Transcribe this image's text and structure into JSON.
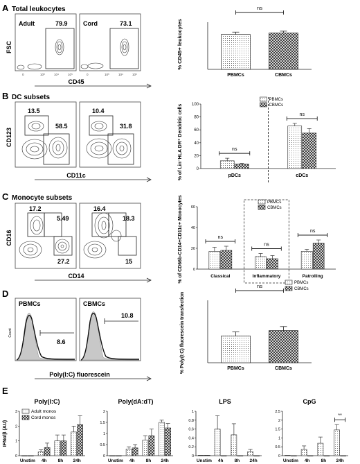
{
  "panels": {
    "A": {
      "letter": "A",
      "title": "Total leukocytes",
      "flow": {
        "y_label": "FSC",
        "x_label": "CD45",
        "plots": [
          {
            "label": "Adult",
            "pct": "79.9"
          },
          {
            "label": "Cord",
            "pct": "73.1"
          }
        ],
        "ticks": [
          "0",
          "10³",
          "10⁴",
          "10⁵"
        ]
      }
    },
    "B": {
      "letter": "B",
      "title": "DC subsets",
      "flow": {
        "y_label": "CD123",
        "x_label": "CD11c",
        "plots": [
          {
            "gates": [
              "13.5",
              "58.5"
            ]
          },
          {
            "gates": [
              "10.4",
              "31.8"
            ]
          }
        ]
      }
    },
    "C": {
      "letter": "C",
      "title": "Monocyte subsets",
      "flow": {
        "y_label": "CD16",
        "x_label": "CD14",
        "plots": [
          {
            "gates": [
              "17.2",
              "5.49",
              "27.2"
            ]
          },
          {
            "gates": [
              "16.4",
              "18.3",
              "15"
            ]
          }
        ]
      }
    },
    "D": {
      "letter": "D",
      "flow": {
        "y_label": "Count",
        "x_label": "Poly(I:C) fluorescein",
        "plots": [
          {
            "label": "PBMCs",
            "pct": "8.6"
          },
          {
            "label": "CBMCs",
            "pct": "10.8"
          }
        ]
      }
    },
    "E": {
      "letter": "E"
    }
  },
  "chart_data": [
    {
      "id": "A",
      "type": "bar",
      "title": "",
      "ylabel": "% CD45+ leukocytes",
      "xlabel": "",
      "categories": [
        "PBMCs",
        "CBMCs"
      ],
      "values": [
        74,
        77
      ],
      "errors": [
        5,
        4
      ],
      "ylim": [
        0,
        100
      ],
      "patterns": [
        "dots",
        "cross"
      ],
      "significance": [
        {
          "label": "ns",
          "from": 0,
          "to": 1
        }
      ]
    },
    {
      "id": "B",
      "type": "bar",
      "title": "",
      "ylabel": "% of Lin⁻HLA DR⁺ Dendritic cells",
      "xlabel": "",
      "groups": [
        "pDCs",
        "cDCs"
      ],
      "ylim": [
        0,
        100
      ],
      "yticks": [
        0,
        20,
        40,
        60,
        80,
        100
      ],
      "series": [
        {
          "name": "PBMCs",
          "pattern": "dots",
          "values": [
            12,
            66
          ],
          "errors": [
            4,
            4
          ]
        },
        {
          "name": "CBMCs",
          "pattern": "cross",
          "values": [
            7,
            55
          ],
          "errors": [
            1,
            7
          ]
        }
      ],
      "significance": [
        {
          "label": "ns",
          "group": 0
        },
        {
          "label": "ns",
          "group": 1
        }
      ],
      "separators": [
        1
      ]
    },
    {
      "id": "C",
      "type": "bar",
      "title": "",
      "ylabel": "% of CD66b-CD14+CD11c+ Monocytes",
      "xlabel": "",
      "groups": [
        "Classical",
        "Inflammatory",
        "Patrolling"
      ],
      "ylim": [
        0,
        60
      ],
      "yticks": [
        0,
        20,
        40,
        60
      ],
      "series": [
        {
          "name": "PBMCs",
          "pattern": "dots",
          "values": [
            17,
            12,
            17
          ],
          "errors": [
            4,
            3,
            2
          ]
        },
        {
          "name": "CBMCs",
          "pattern": "cross",
          "values": [
            18,
            10,
            25
          ],
          "errors": [
            4,
            3,
            3
          ]
        }
      ],
      "significance": [
        {
          "label": "ns",
          "group": 0
        },
        {
          "label": "ns",
          "group": 1
        },
        {
          "label": "ns",
          "group": 2
        }
      ],
      "boxed_groups": [
        1
      ]
    },
    {
      "id": "D",
      "type": "bar",
      "title": "",
      "ylabel": "% Poly(I:C) fluorescein transfection",
      "xlabel": "",
      "categories": [
        "PBMCs",
        "CBMCs"
      ],
      "values": [
        8.6,
        10.3
      ],
      "errors": [
        1.3,
        1.3
      ],
      "ylim": [
        0,
        20
      ],
      "patterns": [
        "dots",
        "cross"
      ],
      "legend": [
        "PBMCs",
        "CBMCs"
      ],
      "significance": [
        {
          "label": "ns",
          "from": 0,
          "to": 1
        }
      ]
    },
    {
      "id": "E1",
      "type": "bar",
      "title": "Poly(I:C)",
      "ylabel": "IFNα/β (AU)",
      "categories": [
        "Unstim",
        "4h",
        "8h",
        "24h"
      ],
      "ylim": [
        0,
        3
      ],
      "yticks": [
        0,
        1,
        2,
        3
      ],
      "series": [
        {
          "name": "Adult monos",
          "pattern": "dots",
          "values": [
            0,
            0.25,
            1.0,
            1.6
          ],
          "errors": [
            0,
            0.15,
            0.4,
            0.4
          ]
        },
        {
          "name": "Cord monos",
          "pattern": "cross",
          "values": [
            0,
            0.55,
            1.0,
            2.1
          ],
          "errors": [
            0,
            0.3,
            0.4,
            0.6
          ]
        }
      ]
    },
    {
      "id": "E2",
      "type": "bar",
      "title": "Poly(dA:dT)",
      "ylabel": "",
      "categories": [
        "Unstim",
        "4h",
        "8h",
        "24h"
      ],
      "ylim": [
        0,
        2
      ],
      "yticks": [
        0.0,
        0.5,
        1.0,
        1.5,
        2.0
      ],
      "series": [
        {
          "name": "Adult monos",
          "pattern": "dots",
          "values": [
            0,
            0.3,
            0.7,
            1.5
          ],
          "errors": [
            0,
            0.1,
            0.2,
            0.1
          ]
        },
        {
          "name": "Cord monos",
          "pattern": "cross",
          "values": [
            0,
            0.35,
            0.9,
            1.25
          ],
          "errors": [
            0,
            0.15,
            0.3,
            0.2
          ]
        }
      ]
    },
    {
      "id": "E3",
      "type": "bar",
      "title": "LPS",
      "ylabel": "",
      "categories": [
        "Unstim",
        "4h",
        "8h",
        "24h"
      ],
      "ylim": [
        0,
        1
      ],
      "yticks": [
        0.0,
        0.2,
        0.4,
        0.6,
        0.8,
        1.0
      ],
      "series": [
        {
          "name": "Adult monos",
          "pattern": "dots",
          "values": [
            0.01,
            0.6,
            0.47,
            0.09
          ],
          "errors": [
            0,
            0.3,
            0.25,
            0.05
          ]
        },
        {
          "name": "Cord monos",
          "pattern": "cross",
          "values": [
            0.01,
            0.0,
            0.0,
            0.0
          ],
          "errors": [
            0,
            0,
            0,
            0
          ]
        }
      ]
    },
    {
      "id": "E4",
      "type": "bar",
      "title": "CpG",
      "ylabel": "",
      "categories": [
        "Unstim",
        "4h",
        "8h",
        "24h"
      ],
      "ylim": [
        0,
        2.5
      ],
      "yticks": [
        0.0,
        0.5,
        1.0,
        1.5,
        2.0,
        2.5
      ],
      "series": [
        {
          "name": "Adult monos",
          "pattern": "dots",
          "values": [
            0.02,
            0.35,
            0.7,
            1.45
          ],
          "errors": [
            0,
            0.2,
            0.35,
            0.3
          ]
        },
        {
          "name": "Cord monos",
          "pattern": "cross",
          "values": [
            0.0,
            0.0,
            0.0,
            0.0
          ],
          "errors": [
            0,
            0,
            0,
            0
          ]
        }
      ],
      "significance": [
        {
          "label": "**",
          "group": 3
        }
      ]
    }
  ]
}
